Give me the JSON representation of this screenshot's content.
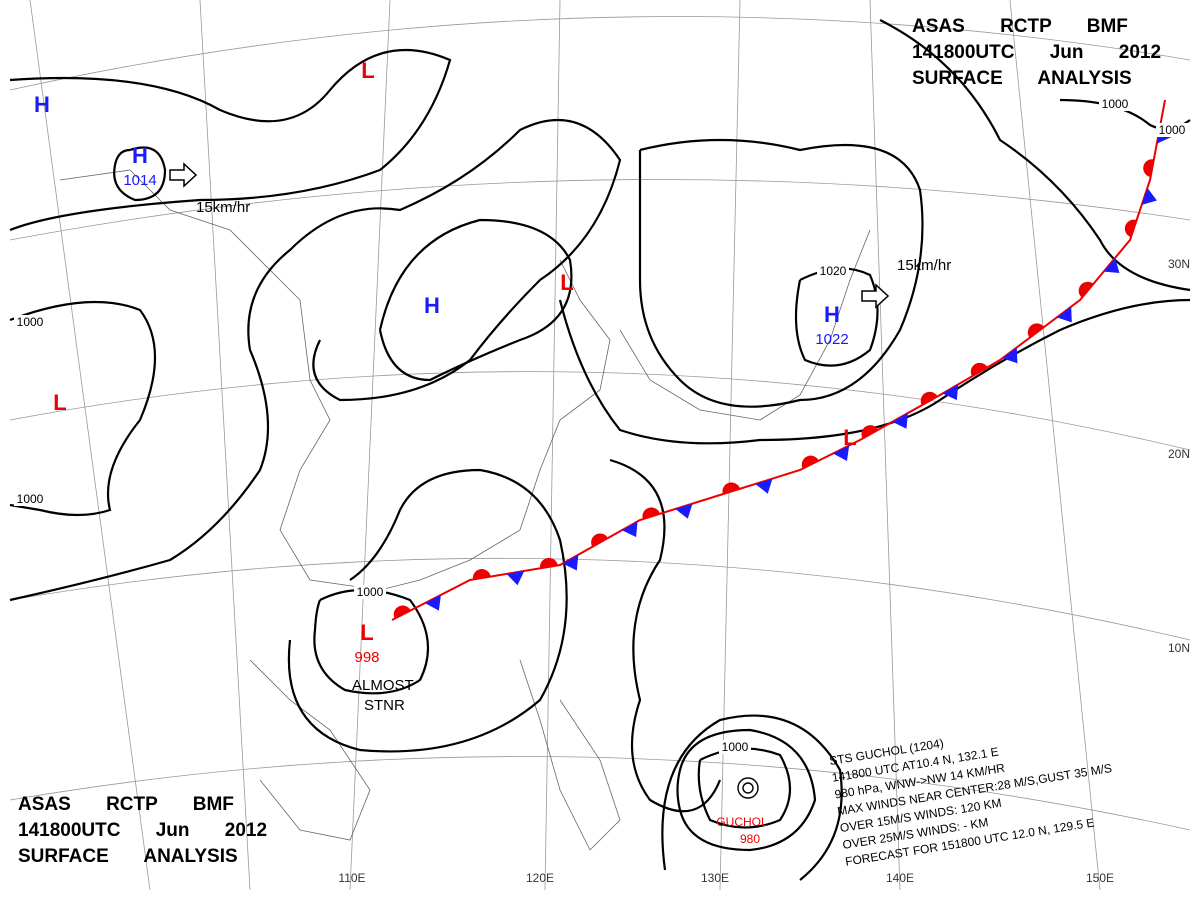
{
  "title": {
    "lines": [
      "ASAS RCTP BMF",
      "141800UTC Jun 2012",
      "SURFACE ANALYSIS"
    ]
  },
  "pressure_systems": [
    {
      "symbol": "H"
    },
    {
      "symbol": "H",
      "pressure": "1014"
    },
    {
      "symbol": "L"
    },
    {
      "symbol": "H"
    },
    {
      "symbol": "L"
    },
    {
      "symbol": "H",
      "pressure": "1022"
    },
    {
      "symbol": "L"
    },
    {
      "symbol": "L",
      "pressure": "998"
    },
    {
      "symbol": "L"
    }
  ],
  "isobar_labels": [
    "1000",
    "1000",
    "1000",
    "1020",
    "1000",
    "1000",
    "1000"
  ],
  "movement_labels": [
    "15km/hr",
    "15km/hr"
  ],
  "stationary_note": [
    "ALMOST",
    "STNR"
  ],
  "grid_labels": {
    "lon": [
      "110E",
      "120E",
      "130E",
      "140E",
      "150E"
    ],
    "lat": [
      "30N",
      "20N",
      "10N"
    ]
  },
  "storm": {
    "name": "GUCHOL",
    "pressure": "980",
    "info": [
      "STS GUCHOL (1204)",
      "141800 UTC AT10.4 N, 132.1 E",
      "980 hPa, WNW->NW 14 KM/HR",
      "MAX WINDS NEAR CENTER:28 M/S,GUST 35 M/S",
      "OVER 15M/S WINDS: 120 KM",
      "OVER 25M/S WINDS: - KM",
      "FORECAST FOR 151800 UTC 12.0 N, 129.5 E"
    ]
  }
}
